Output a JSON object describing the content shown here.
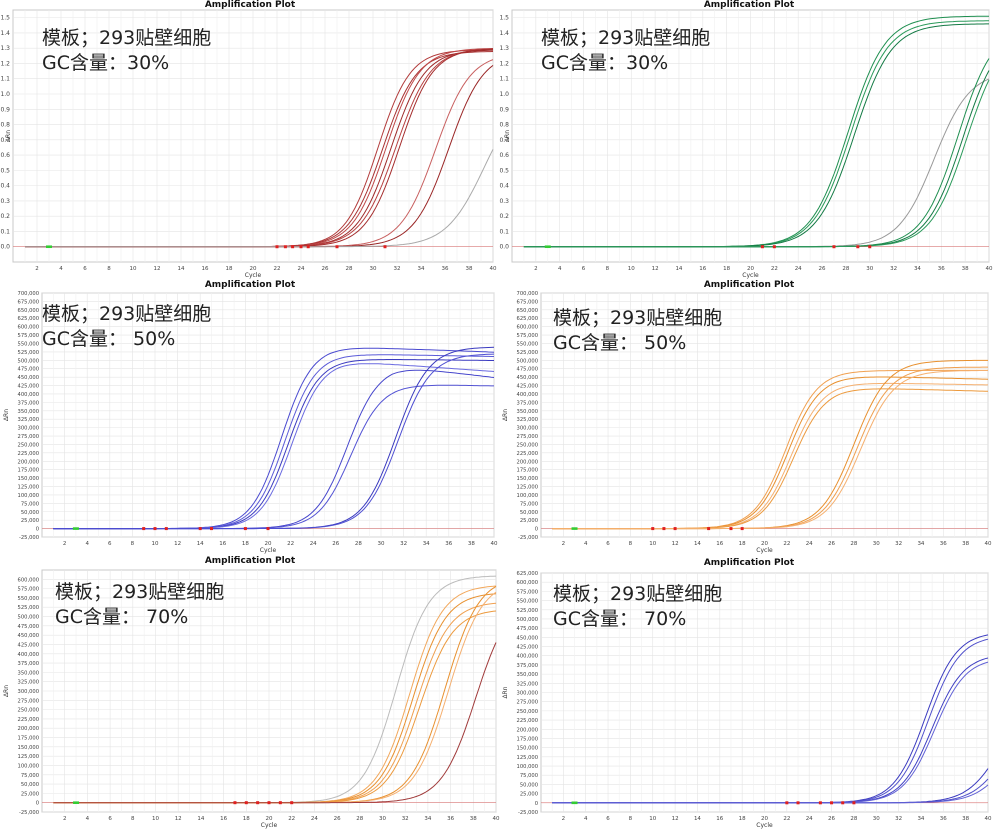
{
  "chart_data": [
    {
      "type": "line",
      "title": "Amplification Plot",
      "xlabel": "Cycle",
      "ylabel": "ΔRn",
      "xlim": [
        0,
        40
      ],
      "ylim": [
        -0.1,
        1.55
      ],
      "xticks": [
        2,
        4,
        6,
        8,
        10,
        12,
        14,
        16,
        18,
        20,
        22,
        24,
        26,
        28,
        30,
        32,
        34,
        36,
        38,
        40
      ],
      "yticks": [
        0.0,
        0.1,
        0.2,
        0.3,
        0.4,
        0.5,
        0.6,
        0.7,
        0.8,
        0.9,
        1.0,
        1.1,
        1.2,
        1.3,
        1.4,
        1.5
      ],
      "grid": true,
      "overlay_lines": [
        "模板；293贴壁细胞",
        "GC含量：30%"
      ],
      "series": [
        {
          "color": "#b23b3b",
          "plateau": 1.29,
          "midpoint": 30.4,
          "slope": 1.35
        },
        {
          "color": "#a83232",
          "plateau": 1.28,
          "midpoint": 30.8,
          "slope": 1.4
        },
        {
          "color": "#c04848",
          "plateau": 1.3,
          "midpoint": 31.1,
          "slope": 1.4
        },
        {
          "color": "#9e2a2a",
          "plateau": 1.29,
          "midpoint": 31.5,
          "slope": 1.4
        },
        {
          "color": "#b84040",
          "plateau": 1.3,
          "midpoint": 31.9,
          "slope": 1.45
        },
        {
          "color": "#a52d2d",
          "plateau": 1.3,
          "midpoint": 32.2,
          "slope": 1.4
        },
        {
          "color": "#c86060",
          "plateau": 1.27,
          "midpoint": 35.2,
          "slope": 1.45
        },
        {
          "color": "#9a2626",
          "plateau": 1.28,
          "midpoint": 36.3,
          "slope": 1.45
        },
        {
          "color": "#aaaaaa",
          "plateau": 1.05,
          "midpoint": 39.3,
          "slope": 1.6
        }
      ],
      "threshold_markers": [
        22,
        22.7,
        23.3,
        24,
        24.6,
        27,
        31
      ]
    },
    {
      "type": "line",
      "title": "Amplification Plot",
      "xlabel": "Cycle",
      "ylabel": "ΔRn",
      "xlim": [
        0,
        40
      ],
      "ylim": [
        -0.1,
        1.55
      ],
      "xticks": [
        2,
        4,
        6,
        8,
        10,
        12,
        14,
        16,
        18,
        20,
        22,
        24,
        26,
        28,
        30,
        32,
        34,
        36,
        38,
        40
      ],
      "yticks": [
        0.0,
        0.1,
        0.2,
        0.3,
        0.4,
        0.5,
        0.6,
        0.7,
        0.8,
        0.9,
        1.0,
        1.1,
        1.2,
        1.3,
        1.4,
        1.5
      ],
      "grid": true,
      "overlay_lines": [
        "模板；293贴壁细胞",
        "GC含量：30%"
      ],
      "series": [
        {
          "color": "#1f8f50",
          "plateau": 1.51,
          "midpoint": 28.2,
          "slope": 1.55
        },
        {
          "color": "#2a9a5a",
          "plateau": 1.48,
          "midpoint": 28.4,
          "slope": 1.55
        },
        {
          "color": "#137a44",
          "plateau": 1.46,
          "midpoint": 28.7,
          "slope": 1.55
        },
        {
          "color": "#999999",
          "plateau": 1.15,
          "midpoint": 35.4,
          "slope": 1.5
        },
        {
          "color": "#1f8f50",
          "plateau": 1.45,
          "midpoint": 37.4,
          "slope": 1.5
        },
        {
          "color": "#137a44",
          "plateau": 1.42,
          "midpoint": 37.8,
          "slope": 1.5
        },
        {
          "color": "#2a9a5a",
          "plateau": 1.4,
          "midpoint": 38.1,
          "slope": 1.5
        }
      ],
      "threshold_markers": [
        21,
        22,
        27,
        29,
        30
      ]
    },
    {
      "type": "line",
      "title": "Amplification Plot",
      "xlabel": "Cycle",
      "ylabel": "ΔRn",
      "xlim": [
        0,
        40
      ],
      "ylim": [
        -25000,
        700000
      ],
      "xticks": [
        2,
        4,
        6,
        8,
        10,
        12,
        14,
        16,
        18,
        20,
        22,
        24,
        26,
        28,
        30,
        32,
        34,
        36,
        38,
        40
      ],
      "yticks": [
        -25000,
        0,
        25000,
        50000,
        75000,
        100000,
        125000,
        150000,
        175000,
        200000,
        225000,
        250000,
        275000,
        300000,
        325000,
        350000,
        375000,
        400000,
        425000,
        450000,
        475000,
        500000,
        525000,
        550000,
        575000,
        600000,
        625000,
        650000,
        675000,
        700000
      ],
      "grid": true,
      "overlay_lines": [
        "模板；293贴壁细胞",
        "GC含量： 50%"
      ],
      "series": [
        {
          "color": "#4a4ad0",
          "plateau": 542000,
          "midpoint": 21.2,
          "slope": 1.35,
          "drift": -1200
        },
        {
          "color": "#5b5bd8",
          "plateau": 520000,
          "midpoint": 21.5,
          "slope": 1.35,
          "drift": -600
        },
        {
          "color": "#3b3bc0",
          "plateau": 505000,
          "midpoint": 21.8,
          "slope": 1.35,
          "drift": -400
        },
        {
          "color": "#6a6ae0",
          "plateau": 500000,
          "midpoint": 22.1,
          "slope": 1.35,
          "drift": -2400
        },
        {
          "color": "#4646cc",
          "plateau": 485000,
          "midpoint": 27.0,
          "slope": 1.4,
          "drift": -4000
        },
        {
          "color": "#5353d4",
          "plateau": 430000,
          "midpoint": 27.3,
          "slope": 1.4,
          "drift": -700
        },
        {
          "color": "#3a3abf",
          "plateau": 540000,
          "midpoint": 31.3,
          "slope": 1.45,
          "drift": 0
        },
        {
          "color": "#4e4ed2",
          "plateau": 520000,
          "midpoint": 31.5,
          "slope": 1.45,
          "drift": 0
        }
      ],
      "threshold_markers": [
        9,
        10,
        11,
        14,
        15,
        18,
        20
      ]
    },
    {
      "type": "line",
      "title": "Amplification Plot",
      "xlabel": "Cycle",
      "ylabel": "ΔRn",
      "xlim": [
        0,
        40
      ],
      "ylim": [
        -25000,
        700000
      ],
      "xticks": [
        2,
        4,
        6,
        8,
        10,
        12,
        14,
        16,
        18,
        20,
        22,
        24,
        26,
        28,
        30,
        32,
        34,
        36,
        38,
        40
      ],
      "yticks": [
        -25000,
        0,
        25000,
        50000,
        75000,
        100000,
        125000,
        150000,
        175000,
        200000,
        225000,
        250000,
        275000,
        300000,
        325000,
        350000,
        375000,
        400000,
        425000,
        450000,
        475000,
        500000,
        525000,
        550000,
        575000,
        600000,
        625000,
        650000,
        675000,
        700000
      ],
      "grid": true,
      "overlay_lines": [
        "模板；293贴壁细胞",
        "GC含量： 50%"
      ],
      "series": [
        {
          "color": "#f0a050",
          "plateau": 470000,
          "midpoint": 21.9,
          "slope": 1.4,
          "drift": 0
        },
        {
          "color": "#e8902e",
          "plateau": 455000,
          "midpoint": 22.1,
          "slope": 1.4,
          "drift": -800
        },
        {
          "color": "#f5b070",
          "plateau": 435000,
          "midpoint": 22.4,
          "slope": 1.4,
          "drift": -600
        },
        {
          "color": "#ec9a3e",
          "plateau": 420000,
          "midpoint": 22.6,
          "slope": 1.4,
          "drift": -900
        },
        {
          "color": "#e8902e",
          "plateau": 500000,
          "midpoint": 28.0,
          "slope": 1.5,
          "drift": 0
        },
        {
          "color": "#f0a050",
          "plateau": 480000,
          "midpoint": 28.3,
          "slope": 1.5,
          "drift": 0
        },
        {
          "color": "#f5b070",
          "plateau": 470000,
          "midpoint": 28.6,
          "slope": 1.5,
          "drift": 0
        }
      ],
      "threshold_markers": [
        10,
        11,
        12,
        15,
        17,
        18
      ]
    },
    {
      "type": "line",
      "title": "Amplification Plot",
      "xlabel": "Cycle",
      "ylabel": "ΔRn",
      "xlim": [
        0,
        40
      ],
      "ylim": [
        -25000,
        625000
      ],
      "xticks": [
        2,
        4,
        6,
        8,
        10,
        12,
        14,
        16,
        18,
        20,
        22,
        24,
        26,
        28,
        30,
        32,
        34,
        36,
        38,
        40
      ],
      "yticks": [
        -25000,
        0,
        25000,
        50000,
        75000,
        100000,
        125000,
        150000,
        175000,
        200000,
        225000,
        250000,
        275000,
        300000,
        325000,
        350000,
        375000,
        400000,
        425000,
        450000,
        475000,
        500000,
        525000,
        550000,
        575000,
        600000
      ],
      "grid": true,
      "overlay_lines": [
        "模板；293贴壁细胞",
        "GC含量： 70%"
      ],
      "series": [
        {
          "color": "#bbbbbb",
          "plateau": 610000,
          "midpoint": 31.2,
          "slope": 1.45
        },
        {
          "color": "#f2a85c",
          "plateau": 585000,
          "midpoint": 32.4,
          "slope": 1.45
        },
        {
          "color": "#e8902e",
          "plateau": 565000,
          "midpoint": 32.7,
          "slope": 1.45
        },
        {
          "color": "#f0a050",
          "plateau": 540000,
          "midpoint": 33.0,
          "slope": 1.45
        },
        {
          "color": "#ec9a3e",
          "plateau": 520000,
          "midpoint": 33.3,
          "slope": 1.45
        },
        {
          "color": "#e8902e",
          "plateau": 610000,
          "midpoint": 35.5,
          "slope": 1.5
        },
        {
          "color": "#f5b070",
          "plateau": 600000,
          "midpoint": 35.8,
          "slope": 1.5
        },
        {
          "color": "#a03a3a",
          "plateau": 560000,
          "midpoint": 38.2,
          "slope": 1.5
        }
      ],
      "threshold_markers": [
        17,
        18,
        19,
        20,
        21,
        22
      ]
    },
    {
      "type": "line",
      "title": "Amplification Plot",
      "xlabel": "Cycle",
      "ylabel": "ΔRn",
      "xlim": [
        0,
        40
      ],
      "ylim": [
        -25000,
        625000
      ],
      "xticks": [
        2,
        4,
        6,
        8,
        10,
        12,
        14,
        16,
        18,
        20,
        22,
        24,
        26,
        28,
        30,
        32,
        34,
        36,
        38,
        40
      ],
      "yticks": [
        -25000,
        0,
        25000,
        50000,
        75000,
        100000,
        125000,
        150000,
        175000,
        200000,
        225000,
        250000,
        275000,
        300000,
        325000,
        350000,
        375000,
        400000,
        425000,
        450000,
        475000,
        500000,
        525000,
        550000,
        575000,
        600000,
        625000
      ],
      "grid": true,
      "overlay_lines": [
        "模板；293贴壁细胞",
        "GC含量： 70%"
      ],
      "series": [
        {
          "color": "#3b3bc0",
          "plateau": 465000,
          "midpoint": 34.4,
          "slope": 1.4
        },
        {
          "color": "#5050cc",
          "plateau": 455000,
          "midpoint": 34.7,
          "slope": 1.4
        },
        {
          "color": "#4040c4",
          "plateau": 405000,
          "midpoint": 35.0,
          "slope": 1.4
        },
        {
          "color": "#6262d6",
          "plateau": 395000,
          "midpoint": 35.2,
          "slope": 1.4
        },
        {
          "color": "#3b3bc0",
          "plateau": 300000,
          "midpoint": 41.2,
          "slope": 1.5
        },
        {
          "color": "#5050cc",
          "plateau": 280000,
          "midpoint": 41.8,
          "slope": 1.5
        },
        {
          "color": "#6262d6",
          "plateau": 260000,
          "midpoint": 42.2,
          "slope": 1.5
        }
      ],
      "threshold_markers": [
        22,
        23,
        25,
        26,
        27,
        28
      ]
    }
  ]
}
